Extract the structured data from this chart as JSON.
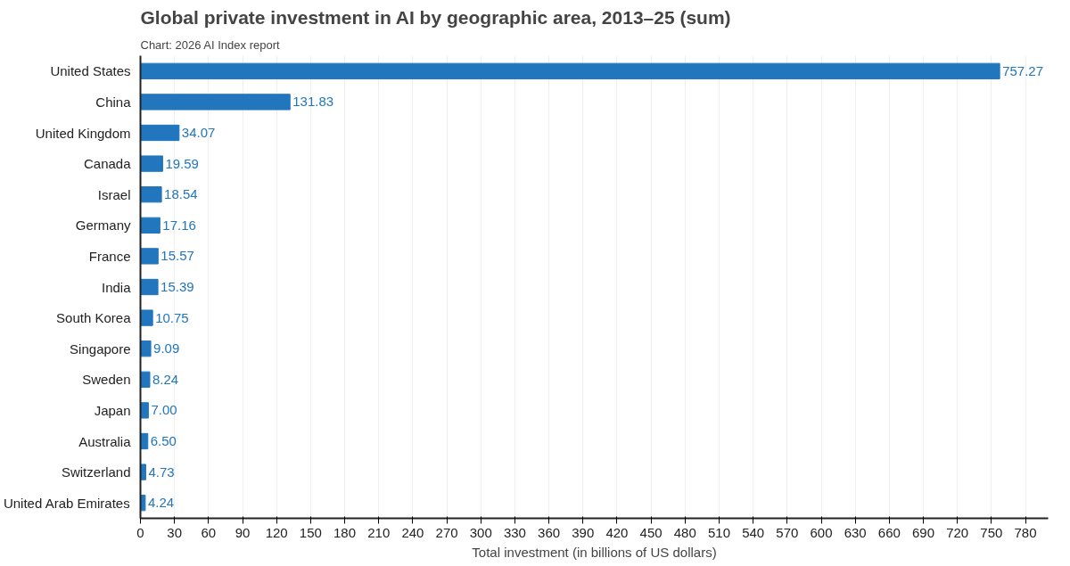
{
  "chart_data": {
    "type": "bar",
    "orientation": "horizontal",
    "title": "Global private investment in AI by geographic area, 2013–25 (sum)",
    "annotations": [
      "Chart: 2026 AI Index report"
    ],
    "xlabel": "Total investment (in billions of US dollars)",
    "categories": [
      "United States",
      "China",
      "United Kingdom",
      "Canada",
      "Israel",
      "Germany",
      "France",
      "India",
      "South Korea",
      "Singapore",
      "Sweden",
      "Japan",
      "Australia",
      "Switzerland",
      "United Arab Emirates"
    ],
    "values": [
      757.27,
      131.83,
      34.07,
      19.59,
      18.54,
      17.16,
      15.57,
      15.39,
      10.75,
      9.09,
      8.24,
      7.0,
      6.5,
      4.73,
      4.24
    ],
    "value_labels": [
      "757.27",
      "131.83",
      "34.07",
      "19.59",
      "18.54",
      "17.16",
      "15.57",
      "15.39",
      "10.75",
      "9.09",
      "8.24",
      "7.00",
      "6.50",
      "4.73",
      "4.24"
    ],
    "color": "#2176be",
    "xlim": [
      0,
      800
    ],
    "xticks": [
      0,
      30,
      60,
      90,
      120,
      150,
      180,
      210,
      240,
      270,
      300,
      330,
      360,
      390,
      420,
      450,
      480,
      510,
      540,
      570,
      600,
      630,
      660,
      690,
      720,
      750,
      780
    ],
    "grid": "x"
  }
}
